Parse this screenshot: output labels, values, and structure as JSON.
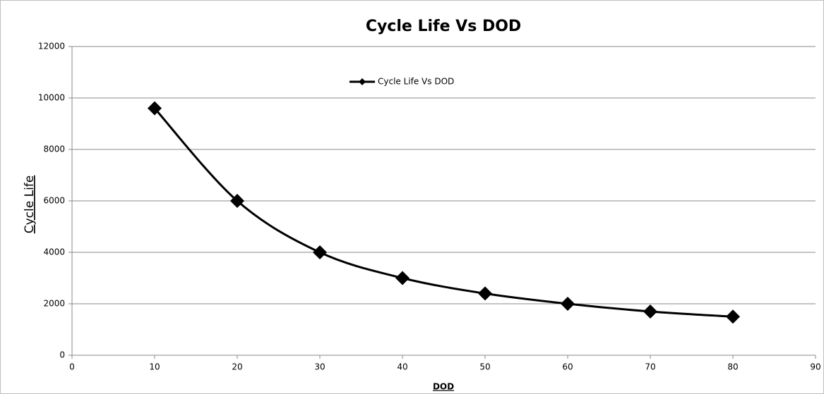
{
  "chart_data": {
    "type": "scatter_smooth",
    "title": "Cycle Life Vs DOD",
    "x_label": "DOD",
    "y_label": "Cycle Life",
    "x": [
      10,
      20,
      30,
      40,
      50,
      60,
      70,
      80
    ],
    "series": [
      {
        "name": "Cycle Life Vs DOD",
        "color": "#000000",
        "values": [
          9600,
          6000,
          4000,
          3000,
          2400,
          2000,
          1700,
          1500
        ]
      }
    ],
    "xlim": [
      0,
      90
    ],
    "xticks": [
      0,
      10,
      20,
      30,
      40,
      50,
      60,
      70,
      80,
      90
    ],
    "ylim": [
      0,
      12000
    ],
    "yticks": [
      0,
      2000,
      4000,
      6000,
      8000,
      10000,
      12000
    ],
    "grid": "y",
    "legend": "top"
  }
}
